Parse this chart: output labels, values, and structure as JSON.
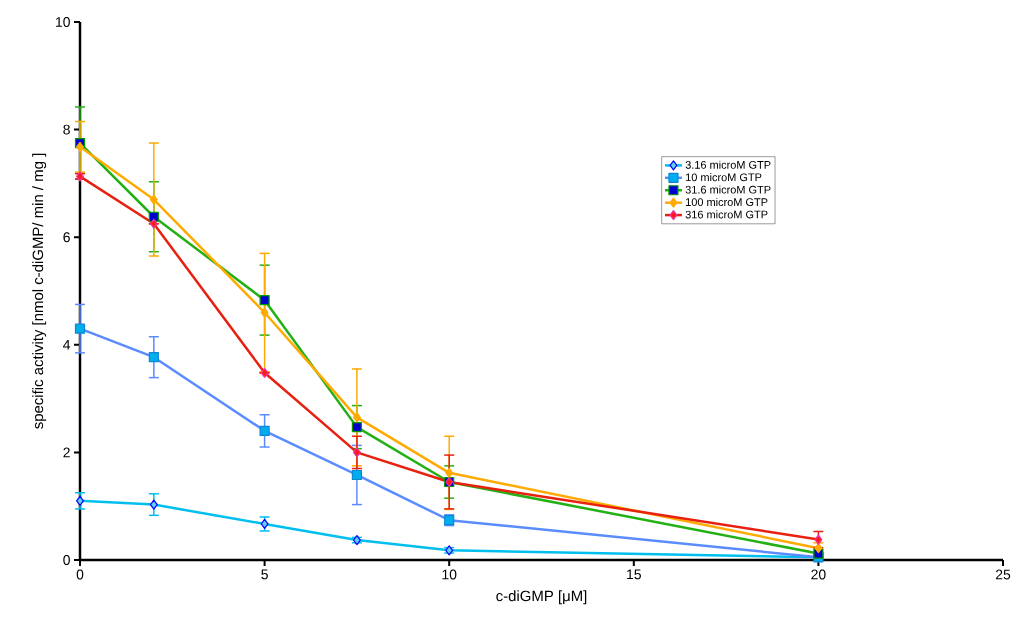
{
  "chart_data": {
    "type": "line",
    "xlabel": "c-diGMP [μM]",
    "ylabel": "specific activity [nmol c-diGMP/ min / mg ]",
    "x": [
      0,
      2,
      5,
      7.5,
      10,
      20
    ],
    "series": [
      {
        "name": "3.16 microM GTP",
        "color": "#00bfef",
        "marker": "diamond",
        "values": [
          1.1,
          1.03,
          0.67,
          0.37,
          0.18,
          0.05
        ],
        "errors": [
          0.15,
          0.2,
          0.13,
          0.05,
          0.05,
          null
        ]
      },
      {
        "name": "10 microM GTP",
        "color": "#5b8cff",
        "marker": "square",
        "values": [
          4.3,
          3.77,
          2.4,
          1.58,
          0.74,
          0.05
        ],
        "errors": [
          0.45,
          0.38,
          0.3,
          0.55,
          0.1,
          null
        ]
      },
      {
        "name": "31.6 microM GTP",
        "color": "#22b014",
        "marker": "square",
        "values": [
          7.75,
          6.38,
          4.83,
          2.47,
          1.45,
          0.12
        ],
        "errors": [
          0.67,
          0.65,
          0.65,
          0.4,
          0.3,
          null
        ]
      },
      {
        "name": "100 microM GTP",
        "color": "#ffaa00",
        "marker": "diamond",
        "values": [
          7.68,
          6.7,
          4.6,
          2.65,
          1.62,
          0.22
        ],
        "errors": [
          0.47,
          1.05,
          1.1,
          0.9,
          0.68,
          0.1
        ]
      },
      {
        "name": "316 microM GTP",
        "color": "#e8200f",
        "marker": "diamond",
        "values": [
          7.13,
          6.25,
          3.48,
          2.0,
          1.45,
          0.38
        ],
        "errors": [
          0.05,
          null,
          null,
          0.3,
          0.5,
          0.15
        ]
      }
    ],
    "xlim": [
      0,
      25
    ],
    "xticks": [
      0,
      5,
      10,
      15,
      20,
      25
    ],
    "ylim": [
      0,
      10
    ],
    "yticks": [
      0,
      2,
      4,
      6,
      8,
      10
    ],
    "legend": "right",
    "grid": false
  }
}
